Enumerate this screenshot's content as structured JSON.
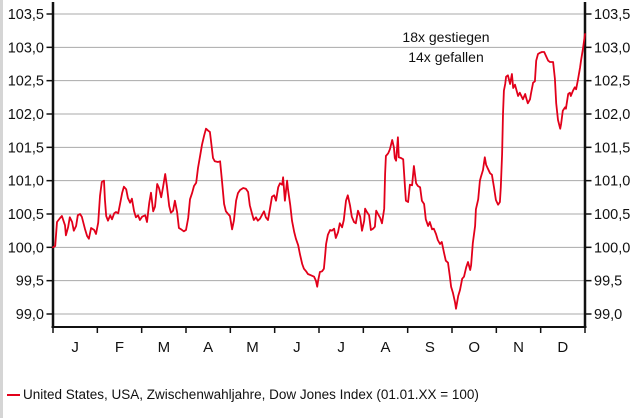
{
  "colors": {
    "line": "#e2001a",
    "grid": "#a9a9a9",
    "axis": "#111111",
    "text": "#111111"
  },
  "annotation": {
    "lines": [
      "18x gestiegen",
      "14x gefallen"
    ]
  },
  "legend": {
    "label": "United States, USA, Zwischenwahljahre, Dow Jones Index (01.01.XX = 100)",
    "swatch_color": "#e2001a"
  },
  "chart_data": {
    "type": "line",
    "title": "",
    "xlabel": "",
    "ylabel": "",
    "grid": "horizontal",
    "x_axis": {
      "tick_labels": [
        "J",
        "F",
        "M",
        "A",
        "M",
        "J",
        "J",
        "A",
        "S",
        "O",
        "N",
        "D"
      ],
      "range_months": [
        0,
        12
      ]
    },
    "y_axis": {
      "range": [
        99.0,
        103.5
      ],
      "tick_step": 0.5,
      "sides": "both",
      "tick_labels": [
        "103,5",
        "103,0",
        "102,5",
        "102,0",
        "101,5",
        "101,0",
        "100,5",
        "100,0",
        "99,5",
        "99,0"
      ]
    },
    "annotation": {
      "lines": [
        "18x gestiegen",
        "14x gefallen"
      ]
    },
    "legend_entries": [
      "United States, USA, Zwischenwahljahre, Dow Jones Index (01.01.XX = 100)"
    ],
    "series": [
      {
        "name": "United States, USA, Zwischenwahljahre, Dow Jones Index (01.01.XX = 100)",
        "color": "#e2001a",
        "x_unit": "month_fraction_0_to_12",
        "points": [
          [
            0.0,
            100.0
          ],
          [
            0.05,
            100.02
          ],
          [
            0.09,
            100.38
          ],
          [
            0.16,
            100.44
          ],
          [
            0.2,
            100.47
          ],
          [
            0.27,
            100.33
          ],
          [
            0.29,
            100.18
          ],
          [
            0.34,
            100.3
          ],
          [
            0.38,
            100.45
          ],
          [
            0.43,
            100.38
          ],
          [
            0.47,
            100.25
          ],
          [
            0.52,
            100.32
          ],
          [
            0.56,
            100.48
          ],
          [
            0.61,
            100.5
          ],
          [
            0.65,
            100.46
          ],
          [
            0.72,
            100.28
          ],
          [
            0.77,
            100.17
          ],
          [
            0.81,
            100.13
          ],
          [
            0.86,
            100.29
          ],
          [
            0.93,
            100.26
          ],
          [
            0.97,
            100.2
          ],
          [
            1.02,
            100.37
          ],
          [
            1.06,
            100.77
          ],
          [
            1.1,
            100.98
          ],
          [
            1.15,
            101.0
          ],
          [
            1.17,
            100.72
          ],
          [
            1.2,
            100.47
          ],
          [
            1.24,
            100.4
          ],
          [
            1.29,
            100.48
          ],
          [
            1.33,
            100.42
          ],
          [
            1.38,
            100.51
          ],
          [
            1.42,
            100.53
          ],
          [
            1.47,
            100.51
          ],
          [
            1.51,
            100.64
          ],
          [
            1.56,
            100.82
          ],
          [
            1.6,
            100.91
          ],
          [
            1.65,
            100.87
          ],
          [
            1.69,
            100.74
          ],
          [
            1.74,
            100.67
          ],
          [
            1.78,
            100.73
          ],
          [
            1.83,
            100.54
          ],
          [
            1.87,
            100.45
          ],
          [
            1.92,
            100.48
          ],
          [
            1.96,
            100.41
          ],
          [
            2.01,
            100.46
          ],
          [
            2.08,
            100.48
          ],
          [
            2.12,
            100.38
          ],
          [
            2.17,
            100.66
          ],
          [
            2.21,
            100.82
          ],
          [
            2.26,
            100.54
          ],
          [
            2.3,
            100.61
          ],
          [
            2.35,
            100.95
          ],
          [
            2.39,
            100.89
          ],
          [
            2.44,
            100.75
          ],
          [
            2.48,
            100.89
          ],
          [
            2.53,
            101.1
          ],
          [
            2.57,
            100.92
          ],
          [
            2.62,
            100.62
          ],
          [
            2.66,
            100.52
          ],
          [
            2.71,
            100.55
          ],
          [
            2.75,
            100.7
          ],
          [
            2.8,
            100.53
          ],
          [
            2.84,
            100.29
          ],
          [
            2.89,
            100.27
          ],
          [
            2.95,
            100.24
          ],
          [
            3.0,
            100.26
          ],
          [
            3.05,
            100.44
          ],
          [
            3.09,
            100.72
          ],
          [
            3.14,
            100.82
          ],
          [
            3.18,
            100.92
          ],
          [
            3.23,
            100.97
          ],
          [
            3.27,
            101.19
          ],
          [
            3.32,
            101.38
          ],
          [
            3.36,
            101.54
          ],
          [
            3.41,
            101.68
          ],
          [
            3.45,
            101.78
          ],
          [
            3.5,
            101.75
          ],
          [
            3.54,
            101.73
          ],
          [
            3.56,
            101.62
          ],
          [
            3.61,
            101.34
          ],
          [
            3.65,
            101.29
          ],
          [
            3.72,
            101.28
          ],
          [
            3.77,
            101.29
          ],
          [
            3.81,
            101.01
          ],
          [
            3.86,
            100.65
          ],
          [
            3.9,
            100.54
          ],
          [
            3.95,
            100.5
          ],
          [
            3.99,
            100.47
          ],
          [
            4.04,
            100.27
          ],
          [
            4.08,
            100.4
          ],
          [
            4.13,
            100.7
          ],
          [
            4.17,
            100.81
          ],
          [
            4.22,
            100.86
          ],
          [
            4.29,
            100.89
          ],
          [
            4.35,
            100.88
          ],
          [
            4.4,
            100.83
          ],
          [
            4.44,
            100.63
          ],
          [
            4.49,
            100.5
          ],
          [
            4.53,
            100.41
          ],
          [
            4.58,
            100.45
          ],
          [
            4.62,
            100.4
          ],
          [
            4.67,
            100.43
          ],
          [
            4.71,
            100.48
          ],
          [
            4.76,
            100.54
          ],
          [
            4.8,
            100.45
          ],
          [
            4.85,
            100.41
          ],
          [
            4.9,
            100.6
          ],
          [
            4.94,
            100.76
          ],
          [
            4.99,
            100.78
          ],
          [
            5.03,
            100.7
          ],
          [
            5.08,
            100.9
          ],
          [
            5.12,
            100.96
          ],
          [
            5.17,
            100.94
          ],
          [
            5.19,
            101.05
          ],
          [
            5.23,
            100.7
          ],
          [
            5.28,
            101.0
          ],
          [
            5.3,
            100.87
          ],
          [
            5.35,
            100.64
          ],
          [
            5.39,
            100.4
          ],
          [
            5.44,
            100.23
          ],
          [
            5.48,
            100.13
          ],
          [
            5.53,
            100.03
          ],
          [
            5.57,
            99.9
          ],
          [
            5.62,
            99.75
          ],
          [
            5.66,
            99.68
          ],
          [
            5.71,
            99.64
          ],
          [
            5.75,
            99.6
          ],
          [
            5.82,
            99.58
          ],
          [
            5.89,
            99.56
          ],
          [
            5.93,
            99.5
          ],
          [
            5.96,
            99.41
          ],
          [
            5.98,
            99.5
          ],
          [
            6.02,
            99.63
          ],
          [
            6.07,
            99.64
          ],
          [
            6.11,
            99.68
          ],
          [
            6.14,
            99.89
          ],
          [
            6.16,
            100.05
          ],
          [
            6.2,
            100.19
          ],
          [
            6.25,
            100.26
          ],
          [
            6.29,
            100.25
          ],
          [
            6.34,
            100.28
          ],
          [
            6.38,
            100.14
          ],
          [
            6.43,
            100.23
          ],
          [
            6.47,
            100.36
          ],
          [
            6.52,
            100.3
          ],
          [
            6.56,
            100.41
          ],
          [
            6.61,
            100.7
          ],
          [
            6.65,
            100.78
          ],
          [
            6.7,
            100.63
          ],
          [
            6.74,
            100.46
          ],
          [
            6.79,
            100.38
          ],
          [
            6.83,
            100.36
          ],
          [
            6.88,
            100.55
          ],
          [
            6.93,
            100.46
          ],
          [
            6.97,
            100.25
          ],
          [
            7.02,
            100.4
          ],
          [
            7.04,
            100.58
          ],
          [
            7.08,
            100.53
          ],
          [
            7.13,
            100.48
          ],
          [
            7.17,
            100.26
          ],
          [
            7.22,
            100.28
          ],
          [
            7.26,
            100.31
          ],
          [
            7.29,
            100.55
          ],
          [
            7.33,
            100.5
          ],
          [
            7.38,
            100.44
          ],
          [
            7.42,
            100.36
          ],
          [
            7.47,
            100.58
          ],
          [
            7.49,
            101.1
          ],
          [
            7.51,
            101.37
          ],
          [
            7.56,
            101.41
          ],
          [
            7.6,
            101.47
          ],
          [
            7.65,
            101.61
          ],
          [
            7.69,
            101.5
          ],
          [
            7.71,
            101.34
          ],
          [
            7.74,
            101.3
          ],
          [
            7.78,
            101.65
          ],
          [
            7.8,
            101.35
          ],
          [
            7.85,
            101.34
          ],
          [
            7.9,
            101.32
          ],
          [
            7.94,
            100.9
          ],
          [
            7.96,
            100.7
          ],
          [
            8.01,
            100.68
          ],
          [
            8.05,
            100.94
          ],
          [
            8.1,
            100.93
          ],
          [
            8.14,
            101.22
          ],
          [
            8.19,
            100.96
          ],
          [
            8.23,
            100.92
          ],
          [
            8.28,
            100.9
          ],
          [
            8.32,
            100.7
          ],
          [
            8.37,
            100.65
          ],
          [
            8.41,
            100.42
          ],
          [
            8.46,
            100.32
          ],
          [
            8.5,
            100.38
          ],
          [
            8.55,
            100.27
          ],
          [
            8.59,
            100.28
          ],
          [
            8.64,
            100.2
          ],
          [
            8.68,
            100.11
          ],
          [
            8.73,
            100.05
          ],
          [
            8.77,
            100.08
          ],
          [
            8.82,
            99.92
          ],
          [
            8.86,
            99.8
          ],
          [
            8.91,
            99.77
          ],
          [
            8.95,
            99.57
          ],
          [
            8.98,
            99.41
          ],
          [
            9.02,
            99.32
          ],
          [
            9.07,
            99.17
          ],
          [
            9.09,
            99.08
          ],
          [
            9.14,
            99.27
          ],
          [
            9.18,
            99.36
          ],
          [
            9.23,
            99.53
          ],
          [
            9.27,
            99.56
          ],
          [
            9.32,
            99.7
          ],
          [
            9.36,
            99.78
          ],
          [
            9.41,
            99.66
          ],
          [
            9.43,
            99.73
          ],
          [
            9.47,
            100.06
          ],
          [
            9.52,
            100.32
          ],
          [
            9.54,
            100.57
          ],
          [
            9.59,
            100.72
          ],
          [
            9.63,
            101.0
          ],
          [
            9.65,
            101.05
          ],
          [
            9.7,
            101.16
          ],
          [
            9.74,
            101.35
          ],
          [
            9.77,
            101.24
          ],
          [
            9.81,
            101.18
          ],
          [
            9.86,
            101.11
          ],
          [
            9.9,
            101.09
          ],
          [
            9.95,
            100.89
          ],
          [
            9.99,
            100.71
          ],
          [
            10.04,
            100.64
          ],
          [
            10.08,
            100.68
          ],
          [
            10.1,
            100.9
          ],
          [
            10.13,
            101.4
          ],
          [
            10.15,
            102.0
          ],
          [
            10.17,
            102.35
          ],
          [
            10.2,
            102.45
          ],
          [
            10.22,
            102.56
          ],
          [
            10.26,
            102.58
          ],
          [
            10.31,
            102.45
          ],
          [
            10.35,
            102.6
          ],
          [
            10.38,
            102.39
          ],
          [
            10.42,
            102.44
          ],
          [
            10.49,
            102.27
          ],
          [
            10.53,
            102.32
          ],
          [
            10.6,
            102.22
          ],
          [
            10.65,
            102.3
          ],
          [
            10.67,
            102.25
          ],
          [
            10.71,
            102.16
          ],
          [
            10.76,
            102.22
          ],
          [
            10.78,
            102.3
          ],
          [
            10.83,
            102.47
          ],
          [
            10.87,
            102.49
          ],
          [
            10.9,
            102.8
          ],
          [
            10.94,
            102.9
          ],
          [
            10.99,
            102.92
          ],
          [
            11.03,
            102.93
          ],
          [
            11.08,
            102.93
          ],
          [
            11.12,
            102.87
          ],
          [
            11.17,
            102.8
          ],
          [
            11.21,
            102.78
          ],
          [
            11.28,
            102.78
          ],
          [
            11.32,
            102.53
          ],
          [
            11.35,
            102.16
          ],
          [
            11.39,
            101.91
          ],
          [
            11.44,
            101.78
          ],
          [
            11.46,
            101.85
          ],
          [
            11.5,
            102.05
          ],
          [
            11.55,
            102.1
          ],
          [
            11.57,
            102.08
          ],
          [
            11.62,
            102.3
          ],
          [
            11.66,
            102.32
          ],
          [
            11.68,
            102.27
          ],
          [
            11.73,
            102.35
          ],
          [
            11.77,
            102.4
          ],
          [
            11.8,
            102.37
          ],
          [
            11.84,
            102.51
          ],
          [
            11.89,
            102.7
          ],
          [
            11.91,
            102.8
          ],
          [
            11.96,
            103.0
          ],
          [
            12.0,
            103.2
          ]
        ]
      }
    ]
  }
}
